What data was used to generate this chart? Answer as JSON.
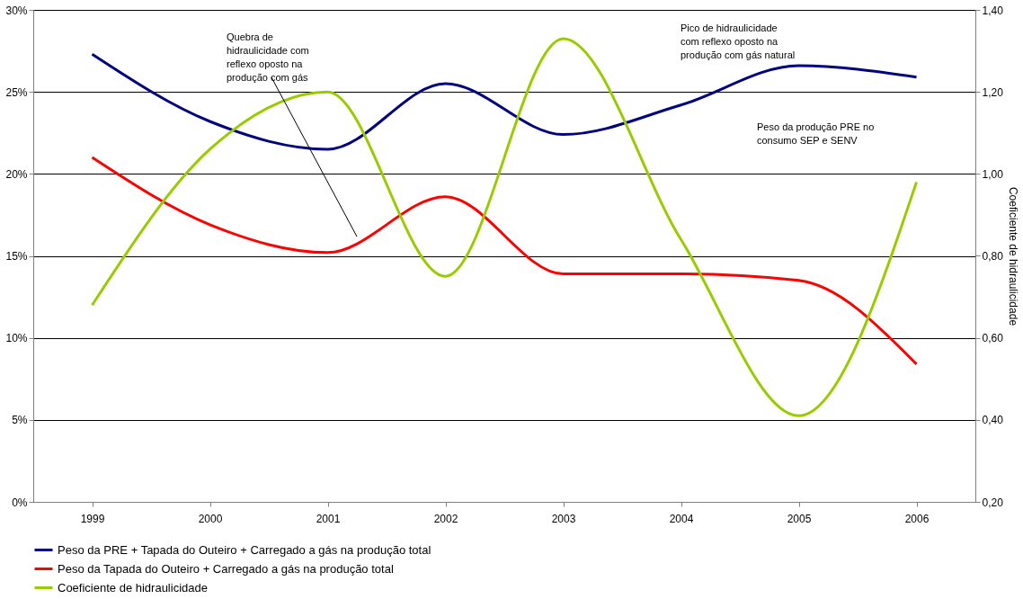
{
  "chart_data": {
    "type": "line",
    "categories": [
      "1999",
      "2000",
      "2001",
      "2002",
      "2003",
      "2004",
      "2005",
      "2006"
    ],
    "series": [
      {
        "name": "Peso da PRE + Tapada do Outeiro + Carregado a gás na produção total",
        "color": "#000080",
        "values": [
          27.3,
          23.2,
          21.5,
          25.5,
          22.4,
          24.2,
          26.6,
          25.9
        ]
      },
      {
        "name": "Peso da Tapada do Outeiro + Carregado a gás na produção total",
        "color": "#ff0000",
        "values": [
          21.0,
          16.9,
          15.2,
          18.6,
          13.9,
          13.9,
          13.5,
          8.4
        ]
      },
      {
        "name": "Coeficiente de hidraulicidade",
        "color": "#99cc00",
        "axis": "y2",
        "values": [
          0.68,
          1.06,
          1.2,
          0.75,
          1.33,
          0.84,
          0.41,
          0.98
        ]
      }
    ],
    "ylim": [
      0,
      30
    ],
    "yticks": [
      {
        "value": 0,
        "label": "0%"
      },
      {
        "value": 5,
        "label": "5%"
      },
      {
        "value": 10,
        "label": "10%"
      },
      {
        "value": 15,
        "label": "15%"
      },
      {
        "value": 20,
        "label": "20%"
      },
      {
        "value": 25,
        "label": "25%"
      },
      {
        "value": 30,
        "label": "30%"
      }
    ],
    "y2lim": [
      0.2,
      1.4
    ],
    "y2ticks": [
      {
        "value": 0.2,
        "label": "0,20"
      },
      {
        "value": 0.4,
        "label": "0,40"
      },
      {
        "value": 0.6,
        "label": "0,60"
      },
      {
        "value": 0.8,
        "label": "0,80"
      },
      {
        "value": 1.0,
        "label": "1,00"
      },
      {
        "value": 1.2,
        "label": "1,20"
      },
      {
        "value": 1.4,
        "label": "1,40"
      }
    ],
    "y2label": "Coeficiente de hidraulicidade",
    "annotations": [
      "Quebra  de hidraulicidade com reflexo oposto na produção com gás",
      "Pico de hidraulicidade com reflexo oposto na produção com gás natural",
      "Peso da produção PRE no consumo SEP e SENV"
    ],
    "grid": "y",
    "legend": "bottom",
    "marker": "none",
    "line_style": "solid"
  }
}
